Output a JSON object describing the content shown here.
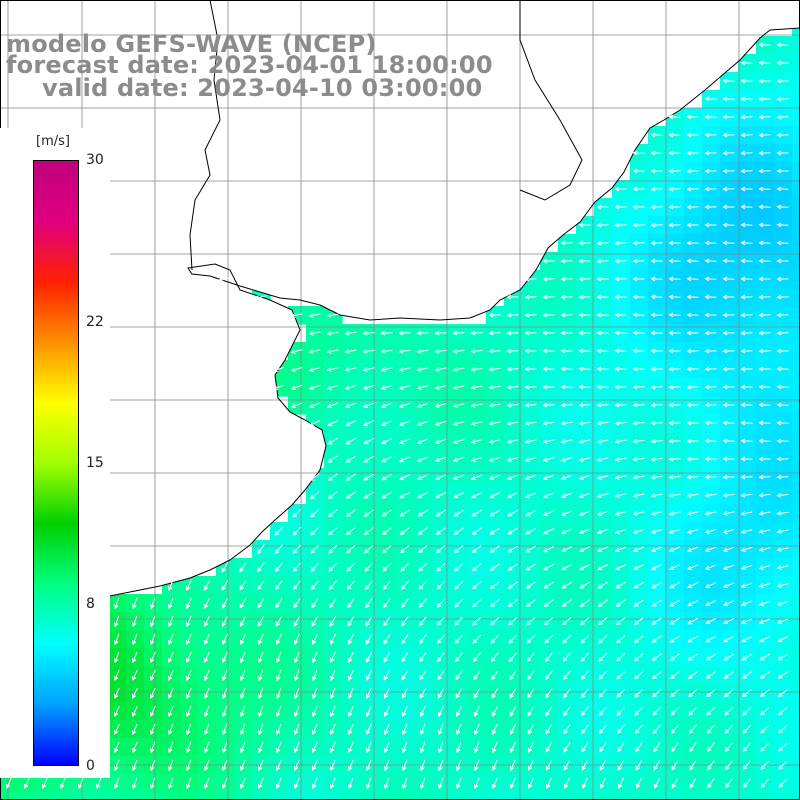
{
  "title": {
    "line1": "modelo GEFS-WAVE (NCEP)",
    "line2": "forecast date: 2023-04-01 18:00:00",
    "line3": "valid date: 2023-04-10 03:00:00"
  },
  "colorbar": {
    "unit": "[m/s]",
    "ticks": [
      {
        "value": 30,
        "label": "30"
      },
      {
        "value": 22,
        "label": "22"
      },
      {
        "value": 15,
        "label": "15"
      },
      {
        "value": 8,
        "label": "8"
      },
      {
        "value": 0,
        "label": "0"
      }
    ],
    "range": [
      0,
      30
    ],
    "colors": [
      "#0000ff",
      "#00a0ff",
      "#00ffff",
      "#00ff80",
      "#00d000",
      "#a0ff00",
      "#ffff00",
      "#ff9000",
      "#ff2000",
      "#e00080",
      "#c0007f"
    ]
  },
  "map": {
    "model": "GEFS-WAVE",
    "variable": "wind speed and direction",
    "land_color": "#ffffff",
    "grid_color": "#888888",
    "coastline_color": "#000000",
    "vector_color": "#ffffff"
  }
}
